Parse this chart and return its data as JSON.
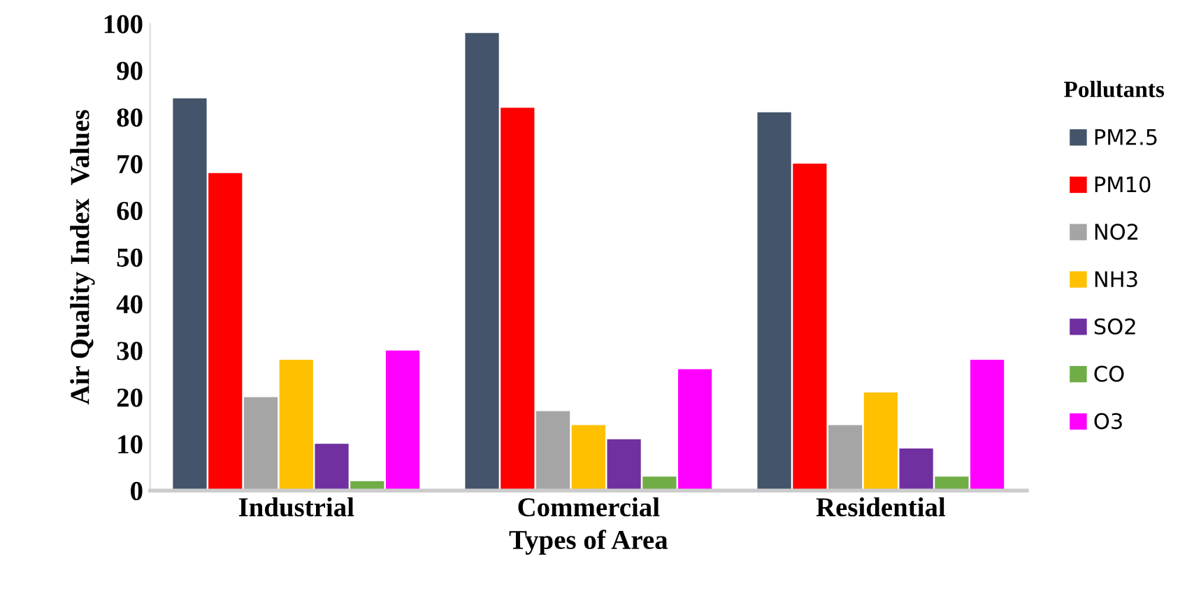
{
  "chart_data": {
    "type": "bar",
    "xlabel": "Types of Area",
    "ylabel": "Air Quality Index  Values",
    "legend_title": "Pollutants",
    "legend": "right",
    "grid": false,
    "categories": [
      "Industrial",
      "Commercial",
      "Residential"
    ],
    "series": [
      {
        "name": "PM2.5",
        "color": "#44546a",
        "values": [
          84,
          98,
          81
        ]
      },
      {
        "name": "PM10",
        "color": "#ff0000",
        "values": [
          68,
          82,
          70
        ]
      },
      {
        "name": "NO2",
        "color": "#a5a5a5",
        "values": [
          20,
          17,
          14
        ]
      },
      {
        "name": "NH3",
        "color": "#ffc000",
        "values": [
          28,
          14,
          21
        ]
      },
      {
        "name": "SO2",
        "color": "#7030a0",
        "values": [
          10,
          11,
          9
        ]
      },
      {
        "name": "CO",
        "color": "#70ad47",
        "values": [
          2,
          3,
          3
        ]
      },
      {
        "name": "O3",
        "color": "#ff00ff",
        "values": [
          30,
          26,
          28
        ]
      }
    ],
    "ylim": [
      0,
      100
    ],
    "yticks": [
      0,
      10,
      20,
      30,
      40,
      50,
      60,
      70,
      80,
      90,
      100
    ]
  }
}
